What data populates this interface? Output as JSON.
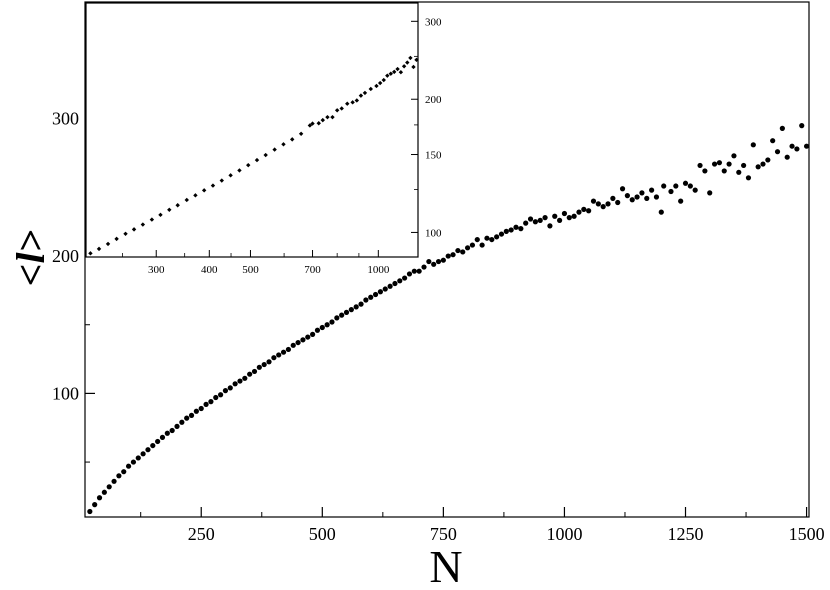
{
  "chart_data": [
    {
      "type": "scatter",
      "xlabel": "N",
      "ylabel": "<l>",
      "xlim": [
        10,
        1505
      ],
      "ylim": [
        10,
        385
      ],
      "xticks": [
        250,
        500,
        750,
        1000,
        1250,
        1500
      ],
      "xtick_labels": [
        "250",
        "500",
        "750",
        "1000",
        "1250",
        "1500"
      ],
      "yticks": [
        100,
        200,
        300
      ],
      "ytick_labels": [
        "100",
        "200",
        "300"
      ],
      "grid": false,
      "marker_color": "#000000",
      "points": [
        [
          20,
          14
        ],
        [
          30,
          19
        ],
        [
          40,
          24
        ],
        [
          50,
          28
        ],
        [
          60,
          32
        ],
        [
          70,
          36
        ],
        [
          80,
          40
        ],
        [
          90,
          43
        ],
        [
          100,
          47
        ],
        [
          110,
          50
        ],
        [
          120,
          53
        ],
        [
          130,
          56
        ],
        [
          140,
          59
        ],
        [
          150,
          62
        ],
        [
          160,
          65
        ],
        [
          170,
          68
        ],
        [
          180,
          71
        ],
        [
          190,
          73
        ],
        [
          200,
          76
        ],
        [
          210,
          79
        ],
        [
          220,
          82
        ],
        [
          230,
          84
        ],
        [
          240,
          87
        ],
        [
          250,
          89
        ],
        [
          260,
          92
        ],
        [
          270,
          94
        ],
        [
          280,
          97
        ],
        [
          290,
          99
        ],
        [
          300,
          102
        ],
        [
          310,
          104
        ],
        [
          320,
          107
        ],
        [
          330,
          109
        ],
        [
          340,
          111
        ],
        [
          350,
          114
        ],
        [
          360,
          116
        ],
        [
          370,
          119
        ],
        [
          380,
          121
        ],
        [
          390,
          123
        ],
        [
          400,
          126
        ],
        [
          410,
          128
        ],
        [
          420,
          130
        ],
        [
          430,
          132
        ],
        [
          440,
          135
        ],
        [
          450,
          137
        ],
        [
          460,
          139
        ],
        [
          470,
          141
        ],
        [
          480,
          143
        ],
        [
          490,
          146
        ],
        [
          500,
          148
        ],
        [
          510,
          150
        ],
        [
          520,
          152
        ],
        [
          530,
          155
        ],
        [
          540,
          157
        ],
        [
          550,
          159
        ],
        [
          560,
          161
        ],
        [
          570,
          163
        ],
        [
          580,
          165
        ],
        [
          590,
          168
        ],
        [
          600,
          170
        ],
        [
          610,
          172
        ],
        [
          620,
          174
        ],
        [
          630,
          176
        ],
        [
          640,
          178
        ],
        [
          650,
          180
        ],
        [
          660,
          182
        ],
        [
          670,
          184
        ],
        [
          680,
          187
        ],
        [
          690,
          189
        ],
        [
          700,
          189
        ],
        [
          710,
          192
        ],
        [
          720,
          196
        ],
        [
          730,
          194
        ],
        [
          740,
          196
        ],
        [
          750,
          197
        ],
        [
          760,
          200
        ],
        [
          770,
          201
        ],
        [
          780,
          204
        ],
        [
          790,
          203
        ],
        [
          800,
          206
        ],
        [
          810,
          208
        ],
        [
          820,
          212
        ],
        [
          830,
          208
        ],
        [
          840,
          213
        ],
        [
          850,
          212
        ],
        [
          860,
          214
        ],
        [
          870,
          216
        ],
        [
          880,
          218
        ],
        [
          890,
          219
        ],
        [
          900,
          221
        ],
        [
          910,
          220
        ],
        [
          920,
          224
        ],
        [
          930,
          227
        ],
        [
          940,
          225
        ],
        [
          950,
          226
        ],
        [
          960,
          228
        ],
        [
          970,
          222
        ],
        [
          980,
          229
        ],
        [
          990,
          226
        ],
        [
          1000,
          231
        ],
        [
          1010,
          228
        ],
        [
          1020,
          229
        ],
        [
          1030,
          232
        ],
        [
          1040,
          234
        ],
        [
          1050,
          233
        ],
        [
          1060,
          240
        ],
        [
          1070,
          238
        ],
        [
          1080,
          236
        ],
        [
          1090,
          238
        ],
        [
          1100,
          242
        ],
        [
          1110,
          239
        ],
        [
          1120,
          249
        ],
        [
          1130,
          244
        ],
        [
          1140,
          241
        ],
        [
          1150,
          243
        ],
        [
          1160,
          246
        ],
        [
          1170,
          242
        ],
        [
          1180,
          248
        ],
        [
          1190,
          243
        ],
        [
          1200,
          232
        ],
        [
          1205,
          251
        ],
        [
          1220,
          247
        ],
        [
          1230,
          251
        ],
        [
          1240,
          240
        ],
        [
          1250,
          253
        ],
        [
          1260,
          251
        ],
        [
          1270,
          248
        ],
        [
          1280,
          266
        ],
        [
          1290,
          262
        ],
        [
          1300,
          246
        ],
        [
          1310,
          267
        ],
        [
          1320,
          268
        ],
        [
          1330,
          262
        ],
        [
          1340,
          267
        ],
        [
          1350,
          273
        ],
        [
          1360,
          261
        ],
        [
          1370,
          266
        ],
        [
          1380,
          257
        ],
        [
          1390,
          281
        ],
        [
          1400,
          265
        ],
        [
          1410,
          267
        ],
        [
          1420,
          270
        ],
        [
          1430,
          284
        ],
        [
          1440,
          276
        ],
        [
          1450,
          293
        ],
        [
          1460,
          272
        ],
        [
          1470,
          280
        ],
        [
          1480,
          278
        ],
        [
          1490,
          295
        ],
        [
          1500,
          280
        ]
      ]
    },
    {
      "type": "scatter",
      "role": "inset",
      "scale": "log-log",
      "xlim": [
        205,
        1240
      ],
      "ylim": [
        88,
        330
      ],
      "xticks": [
        300,
        400,
        500,
        700,
        1000
      ],
      "xtick_labels": [
        "300",
        "400",
        "500",
        "700",
        "1000"
      ],
      "yticks": [
        100,
        150,
        200,
        300
      ],
      "ytick_labels": [
        "100",
        "150",
        "200",
        "300"
      ],
      "grid": false,
      "marker_color": "#000000",
      "points": [
        [
          210,
          89.7
        ],
        [
          220,
          91.8
        ],
        [
          231,
          94.2
        ],
        [
          242,
          96.7
        ],
        [
          254,
          99.3
        ],
        [
          266,
          101.6
        ],
        [
          279,
          104.2
        ],
        [
          293,
          106.9
        ],
        [
          307,
          109.6
        ],
        [
          322,
          112.5
        ],
        [
          337,
          115.2
        ],
        [
          354,
          118.4
        ],
        [
          371,
          121.3
        ],
        [
          389,
          124.5
        ],
        [
          408,
          127.6
        ],
        [
          428,
          131.0
        ],
        [
          449,
          134.6
        ],
        [
          471,
          138.1
        ],
        [
          494,
          141.9
        ],
        [
          518,
          145.7
        ],
        [
          543,
          149.6
        ],
        [
          570,
          153.9
        ],
        [
          598,
          158.2
        ],
        [
          627,
          162.3
        ],
        [
          658,
          167.1
        ],
        [
          690,
          174.5
        ],
        [
          700,
          176.2
        ],
        [
          724,
          176.5
        ],
        [
          740,
          179.4
        ],
        [
          759,
          182.2
        ],
        [
          780,
          182.2
        ],
        [
          800,
          188.8
        ],
        [
          820,
          190.6
        ],
        [
          845,
          195.4
        ],
        [
          870,
          196.8
        ],
        [
          890,
          198.7
        ],
        [
          910,
          203.8
        ],
        [
          930,
          206.7
        ],
        [
          960,
          211.0
        ],
        [
          990,
          214.3
        ],
        [
          1010,
          217.6
        ],
        [
          1030,
          221.0
        ],
        [
          1050,
          226.1
        ],
        [
          1070,
          228.4
        ],
        [
          1090,
          230.6
        ],
        [
          1110,
          234.0
        ],
        [
          1130,
          230.2
        ],
        [
          1150,
          237.4
        ],
        [
          1170,
          242.1
        ],
        [
          1190,
          248.0
        ],
        [
          1210,
          236.6
        ],
        [
          1230,
          245.5
        ]
      ]
    }
  ]
}
